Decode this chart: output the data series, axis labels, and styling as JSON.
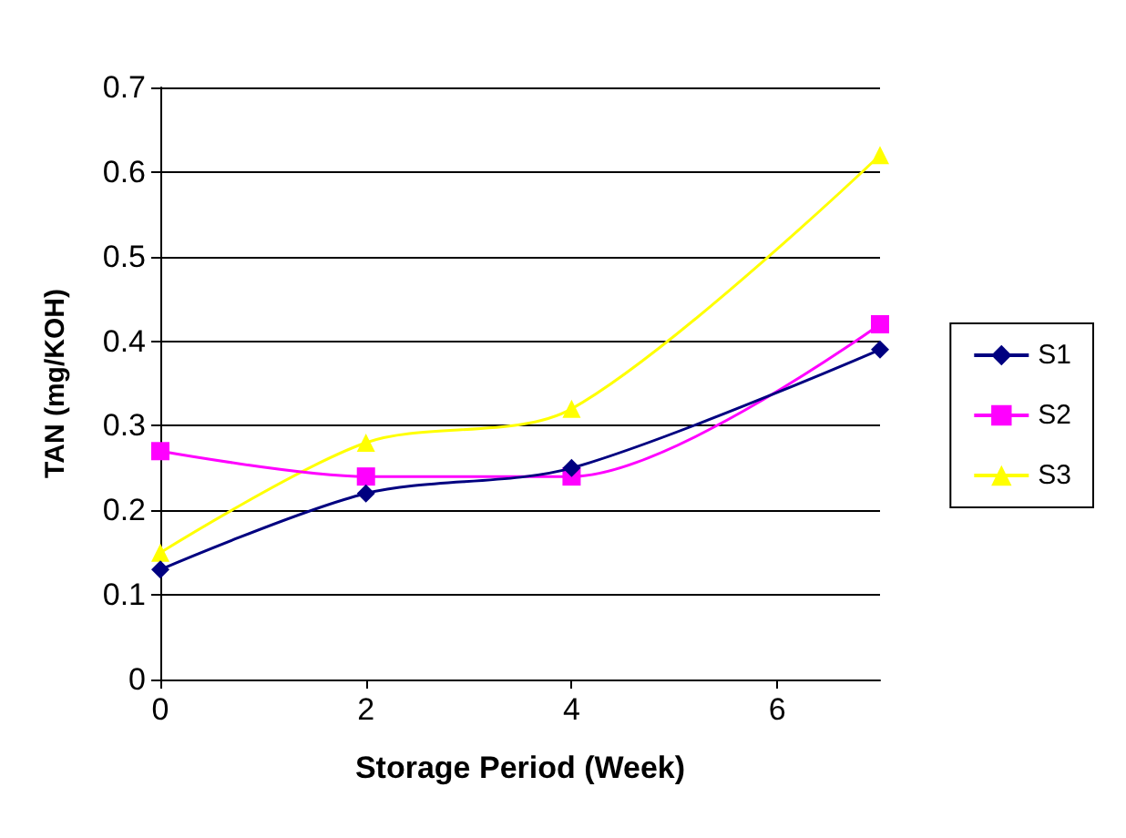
{
  "chart_data": {
    "type": "line",
    "xlabel": "Storage Period (Week)",
    "ylabel": "TAN (mg/KOH)",
    "x": [
      0,
      2,
      4,
      7
    ],
    "xlim": [
      0,
      7
    ],
    "xticks": [
      0,
      2,
      4,
      6
    ],
    "ylim": [
      0,
      0.7
    ],
    "yticks": [
      0,
      0.1,
      0.2,
      0.3,
      0.4,
      0.5,
      0.6,
      0.7
    ],
    "grid": "y",
    "legend": "right",
    "series": [
      {
        "name": "S1",
        "color": "#000080",
        "marker": "diamond",
        "values": [
          0.13,
          0.22,
          0.25,
          0.39
        ]
      },
      {
        "name": "S2",
        "color": "#ff00ff",
        "marker": "square",
        "values": [
          0.27,
          0.24,
          0.24,
          0.42
        ]
      },
      {
        "name": "S3",
        "color": "#ffff00",
        "marker": "triangle",
        "values": [
          0.15,
          0.28,
          0.32,
          0.62
        ]
      }
    ]
  }
}
